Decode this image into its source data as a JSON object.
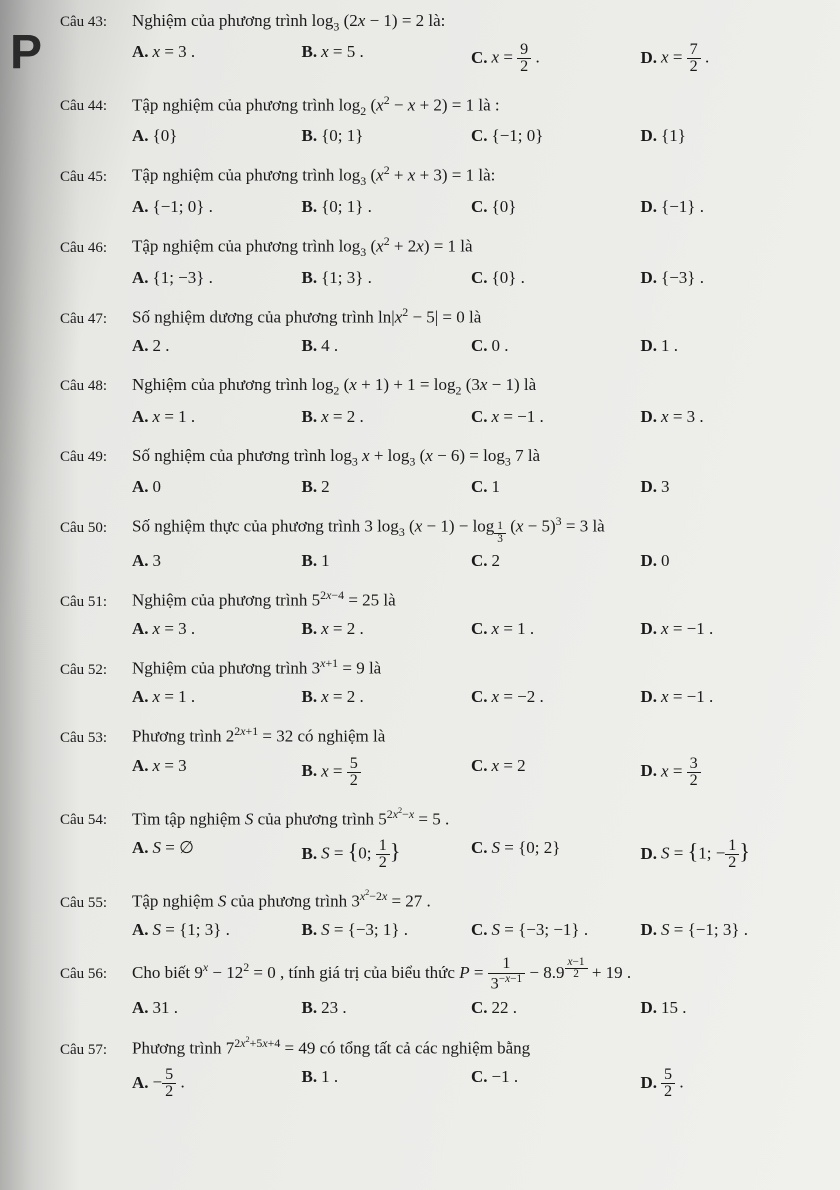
{
  "page": {
    "letter": "P"
  },
  "questions": [
    {
      "num": "Câu 43:",
      "stem": "Nghiệm của phương trình log<sub>3</sub> (2<i>x</i> − 1) = 2 là:",
      "answers": [
        "<i>x</i> = 3 .",
        "<i>x</i> = 5 .",
        "<i>x</i> = <span class='frac'><span class='num'>9</span><span class='den'>2</span></span> .",
        "<i>x</i> = <span class='frac'><span class='num'>7</span><span class='den'>2</span></span> ."
      ]
    },
    {
      "num": "Câu 44:",
      "stem": "Tập nghiệm của phương trình log<sub>2</sub> (<i>x</i><sup>2</sup> − <i>x</i> + 2) = 1 là :",
      "answers": [
        "{0}",
        "{0; 1}",
        "{−1; 0}",
        "{1}"
      ]
    },
    {
      "num": "Câu 45:",
      "stem": "Tập nghiệm của phương trình log<sub>3</sub> (<i>x</i><sup>2</sup> + <i>x</i> + 3) = 1 là:",
      "answers": [
        "{−1; 0} .",
        "{0; 1} .",
        "{0}",
        "{−1} ."
      ]
    },
    {
      "num": "Câu 46:",
      "stem": "Tập nghiệm của phương trình log<sub>3</sub> (<i>x</i><sup>2</sup> + 2<i>x</i>) = 1 là",
      "answers": [
        "{1; −3} .",
        "{1; 3} .",
        "{0} .",
        "{−3} ."
      ]
    },
    {
      "num": "Câu 47:",
      "stem": "Số nghiệm dương của phương trình ln|<i>x</i><sup>2</sup> − 5| = 0 là",
      "answers": [
        "2 .",
        "4 .",
        "0 .",
        "1 ."
      ]
    },
    {
      "num": "Câu 48:",
      "stem": "Nghiệm của phương trình log<sub>2</sub> (<i>x</i> + 1) + 1 = log<sub>2</sub> (3<i>x</i> − 1) là",
      "answers": [
        "<i>x</i> = 1 .",
        "<i>x</i> = 2 .",
        "<i>x</i> = −1 .",
        "<i>x</i> = 3 ."
      ]
    },
    {
      "num": "Câu 49:",
      "stem": "Số nghiệm của phương trình log<sub>3</sub> <i>x</i> + log<sub>3</sub> (<i>x</i> − 6) = log<sub>3</sub> 7 là",
      "answers": [
        "0",
        "2",
        "1",
        "3"
      ]
    },
    {
      "num": "Câu 50:",
      "stem": "Số nghiệm thực của phương trình 3 log<sub>3</sub> (<i>x</i> − 1) − log<sub><span class='frac'><span class='num'>1</span><span class='den'>3</span></span></sub> (<i>x</i> − 5)<sup>3</sup> = 3 là",
      "answers": [
        "3",
        "1",
        "2",
        "0"
      ]
    },
    {
      "num": "Câu 51:",
      "stem": "Nghiệm của phương trình 5<sup>2<i>x</i>−4</sup> = 25 là",
      "answers": [
        "<i>x</i> = 3 .",
        "<i>x</i> = 2 .",
        "<i>x</i> = 1 .",
        "<i>x</i> = −1 ."
      ]
    },
    {
      "num": "Câu 52:",
      "stem": "Nghiệm của phương trình 3<sup><i>x</i>+1</sup> = 9 là",
      "answers": [
        "<i>x</i> = 1 .",
        "<i>x</i> = 2 .",
        "<i>x</i> = −2 .",
        "<i>x</i> = −1 ."
      ]
    },
    {
      "num": "Câu 53:",
      "stem": "Phương trình 2<sup>2<i>x</i>+1</sup> = 32 có nghiệm là",
      "answers": [
        "<i>x</i> = 3",
        "<i>x</i> = <span class='frac'><span class='num'>5</span><span class='den'>2</span></span>",
        "<i>x</i> = 2",
        "<i>x</i> = <span class='frac'><span class='num'>3</span><span class='den'>2</span></span>"
      ]
    },
    {
      "num": "Câu 54:",
      "stem": "Tìm tập nghiệm <i>S</i> của phương trình 5<sup>2<i>x</i><sup>2</sup>−<i>x</i></sup> = 5 .",
      "answers": [
        "<i>S</i> = ∅",
        "<i>S</i> = <span style='font-size:1.3em'>{</span>0; <span class='frac'><span class='num'>1</span><span class='den'>2</span></span><span style='font-size:1.3em'>}</span>",
        "<i>S</i> = {0; 2}",
        "<i>S</i> = <span style='font-size:1.3em'>{</span>1; −<span class='frac'><span class='num'>1</span><span class='den'>2</span></span><span style='font-size:1.3em'>}</span>"
      ]
    },
    {
      "num": "Câu 55:",
      "stem": "Tập nghiệm <i>S</i> của phương trình 3<sup><i>x</i><sup>2</sup>−2<i>x</i></sup> = 27 .",
      "answers": [
        "<i>S</i> = {1; 3} .",
        "<i>S</i> = {−3; 1} .",
        "<i>S</i> = {−3; −1} .",
        "<i>S</i> = {−1; 3} ."
      ]
    },
    {
      "num": "Câu 56:",
      "stem": "Cho biết 9<sup><i>x</i></sup> − 12<sup>2</sup> = 0 , tính giá trị của biểu thức <i>P</i> = <span class='frac'><span class='num'>1</span><span class='den'>3<sup>−<i>x</i>−1</sup></span></span> − 8.9<sup><span class='frac'><span class='num'><i>x</i>−1</span><span class='den'>2</span></span></sup> + 19 .",
      "answers": [
        "31 .",
        "23 .",
        "22 .",
        "15 ."
      ]
    },
    {
      "num": "Câu 57:",
      "stem": "Phương trình 7<sup>2<i>x</i><sup>2</sup>+5<i>x</i>+4</sup> = 49 có tổng tất cả các nghiệm bằng",
      "answers": [
        "−<span class='frac'><span class='num'>5</span><span class='den'>2</span></span> .",
        "1 .",
        "−1 .",
        "<span class='frac'><span class='num'>5</span><span class='den'>2</span></span> ."
      ]
    }
  ],
  "ansLabels": [
    "A.",
    "B.",
    "C.",
    "D."
  ]
}
